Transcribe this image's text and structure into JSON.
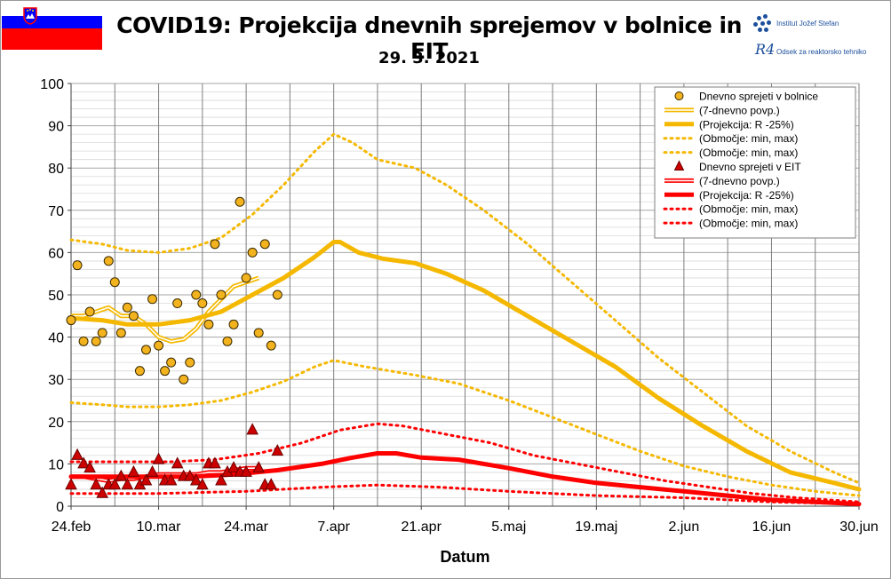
{
  "header": {
    "title": "COVID19: Projekcija dnevnih sprejemov v bolnice in EIT",
    "date": "29. 3. 2021",
    "flag_colors": [
      "#ffffff",
      "#0000ff",
      "#ff0000"
    ],
    "logo_institute": "Institut Jožef Stefan",
    "logo_dept_mark": "R4",
    "logo_dept": "Odsek za reaktorsko tehniko"
  },
  "chart_data": {
    "type": "line",
    "xlabel": "Datum",
    "ylabel": "",
    "ylim": [
      0,
      100
    ],
    "xlim": [
      "2021-02-24",
      "2021-06-30"
    ],
    "yticks": [
      0,
      10,
      20,
      30,
      40,
      50,
      60,
      70,
      80,
      90,
      100
    ],
    "xticks": [
      {
        "date": "2021-02-24",
        "label": "24.feb"
      },
      {
        "date": "2021-03-10",
        "label": "10.mar"
      },
      {
        "date": "2021-03-24",
        "label": "24.mar"
      },
      {
        "date": "2021-04-07",
        "label": "7.apr"
      },
      {
        "date": "2021-04-21",
        "label": "21.apr"
      },
      {
        "date": "2021-05-05",
        "label": "5.maj"
      },
      {
        "date": "2021-05-19",
        "label": "19.maj"
      },
      {
        "date": "2021-06-02",
        "label": "2.jun"
      },
      {
        "date": "2021-06-16",
        "label": "16.jun"
      },
      {
        "date": "2021-06-30",
        "label": "30.jun"
      }
    ],
    "grid": true,
    "legend_position": "top-right",
    "colors": {
      "hospital": "#f5b800",
      "hospital_dot": "#f2b31e",
      "eit": "#ff0000",
      "eit_marker": "#cc0000",
      "grid": "#bfbfbf",
      "week_grid": "#7f7f7f"
    },
    "series": [
      {
        "name": "Dnevno sprejeti v bolnice",
        "kind": "points",
        "marker": "circle",
        "points": [
          [
            "2021-02-24",
            44
          ],
          [
            "2021-02-25",
            57
          ],
          [
            "2021-02-26",
            39
          ],
          [
            "2021-02-27",
            46
          ],
          [
            "2021-02-28",
            39
          ],
          [
            "2021-03-01",
            41
          ],
          [
            "2021-03-02",
            58
          ],
          [
            "2021-03-03",
            53
          ],
          [
            "2021-03-04",
            41
          ],
          [
            "2021-03-05",
            47
          ],
          [
            "2021-03-06",
            45
          ],
          [
            "2021-03-07",
            32
          ],
          [
            "2021-03-08",
            37
          ],
          [
            "2021-03-09",
            49
          ],
          [
            "2021-03-10",
            38
          ],
          [
            "2021-03-11",
            32
          ],
          [
            "2021-03-12",
            34
          ],
          [
            "2021-03-13",
            48
          ],
          [
            "2021-03-14",
            30
          ],
          [
            "2021-03-15",
            34
          ],
          [
            "2021-03-16",
            50
          ],
          [
            "2021-03-17",
            48
          ],
          [
            "2021-03-18",
            43
          ],
          [
            "2021-03-19",
            62
          ],
          [
            "2021-03-20",
            50
          ],
          [
            "2021-03-21",
            39
          ],
          [
            "2021-03-22",
            43
          ],
          [
            "2021-03-23",
            72
          ],
          [
            "2021-03-24",
            54
          ],
          [
            "2021-03-25",
            60
          ],
          [
            "2021-03-26",
            41
          ],
          [
            "2021-03-27",
            62
          ],
          [
            "2021-03-28",
            38
          ],
          [
            "2021-03-29",
            50
          ]
        ]
      },
      {
        "name": "(7-dnevno povp.)",
        "kind": "double-line",
        "points": [
          [
            "2021-02-24",
            45
          ],
          [
            "2021-02-26",
            45
          ],
          [
            "2021-02-28",
            46
          ],
          [
            "2021-03-02",
            47
          ],
          [
            "2021-03-04",
            45
          ],
          [
            "2021-03-06",
            45
          ],
          [
            "2021-03-08",
            43
          ],
          [
            "2021-03-10",
            40
          ],
          [
            "2021-03-12",
            39
          ],
          [
            "2021-03-14",
            39.5
          ],
          [
            "2021-03-16",
            42
          ],
          [
            "2021-03-18",
            46
          ],
          [
            "2021-03-20",
            49
          ],
          [
            "2021-03-22",
            52
          ],
          [
            "2021-03-24",
            53
          ],
          [
            "2021-03-26",
            54
          ]
        ]
      },
      {
        "name": "(Projekcija: R -25%)",
        "kind": "line",
        "points": [
          [
            "2021-02-24",
            44.5
          ],
          [
            "2021-03-01",
            44
          ],
          [
            "2021-03-05",
            43
          ],
          [
            "2021-03-10",
            43
          ],
          [
            "2021-03-15",
            44
          ],
          [
            "2021-03-20",
            46
          ],
          [
            "2021-03-25",
            50
          ],
          [
            "2021-03-30",
            54
          ],
          [
            "2021-04-04",
            59
          ],
          [
            "2021-04-07",
            62.5
          ],
          [
            "2021-04-08",
            62.5
          ],
          [
            "2021-04-11",
            60
          ],
          [
            "2021-04-15",
            58.5
          ],
          [
            "2021-04-20",
            57.5
          ],
          [
            "2021-04-25",
            55
          ],
          [
            "2021-05-01",
            51
          ],
          [
            "2021-05-08",
            45
          ],
          [
            "2021-05-15",
            39
          ],
          [
            "2021-05-22",
            33
          ],
          [
            "2021-05-29",
            25.5
          ],
          [
            "2021-06-05",
            19
          ],
          [
            "2021-06-12",
            13
          ],
          [
            "2021-06-19",
            8
          ],
          [
            "2021-06-26",
            5.5
          ],
          [
            "2021-06-30",
            4
          ]
        ]
      },
      {
        "name": "(Območje: min, max)",
        "kind": "dotted-line",
        "part": "max",
        "points": [
          [
            "2021-02-24",
            63
          ],
          [
            "2021-03-01",
            62
          ],
          [
            "2021-03-05",
            60.5
          ],
          [
            "2021-03-10",
            60
          ],
          [
            "2021-03-15",
            61
          ],
          [
            "2021-03-20",
            63.5
          ],
          [
            "2021-03-25",
            69
          ],
          [
            "2021-03-30",
            76
          ],
          [
            "2021-04-04",
            84
          ],
          [
            "2021-04-07",
            88
          ],
          [
            "2021-04-10",
            86
          ],
          [
            "2021-04-14",
            82
          ],
          [
            "2021-04-20",
            80
          ],
          [
            "2021-04-25",
            76
          ],
          [
            "2021-05-01",
            70
          ],
          [
            "2021-05-08",
            62
          ],
          [
            "2021-05-15",
            53
          ],
          [
            "2021-05-22",
            44
          ],
          [
            "2021-05-29",
            35
          ],
          [
            "2021-06-05",
            27
          ],
          [
            "2021-06-12",
            19
          ],
          [
            "2021-06-19",
            13
          ],
          [
            "2021-06-26",
            8
          ],
          [
            "2021-06-30",
            5.5
          ]
        ]
      },
      {
        "name": "(Območje: min, max)",
        "kind": "dotted-line",
        "part": "min",
        "points": [
          [
            "2021-02-24",
            24.5
          ],
          [
            "2021-03-01",
            24
          ],
          [
            "2021-03-05",
            23.5
          ],
          [
            "2021-03-10",
            23.5
          ],
          [
            "2021-03-15",
            24
          ],
          [
            "2021-03-20",
            25
          ],
          [
            "2021-03-25",
            27
          ],
          [
            "2021-03-30",
            29.5
          ],
          [
            "2021-04-04",
            33
          ],
          [
            "2021-04-07",
            34.5
          ],
          [
            "2021-04-12",
            33
          ],
          [
            "2021-04-20",
            31
          ],
          [
            "2021-04-27",
            29
          ],
          [
            "2021-05-05",
            25
          ],
          [
            "2021-05-12",
            21
          ],
          [
            "2021-05-19",
            17
          ],
          [
            "2021-05-26",
            13
          ],
          [
            "2021-06-02",
            9.5
          ],
          [
            "2021-06-09",
            7
          ],
          [
            "2021-06-16",
            5
          ],
          [
            "2021-06-23",
            3.5
          ],
          [
            "2021-06-30",
            2.5
          ]
        ]
      },
      {
        "name": "Dnevno sprejeti v EIT",
        "kind": "points",
        "marker": "triangle",
        "points": [
          [
            "2021-02-24",
            5
          ],
          [
            "2021-02-25",
            12
          ],
          [
            "2021-02-26",
            10
          ],
          [
            "2021-02-27",
            9
          ],
          [
            "2021-02-28",
            5
          ],
          [
            "2021-03-01",
            3
          ],
          [
            "2021-03-02",
            5
          ],
          [
            "2021-03-03",
            5
          ],
          [
            "2021-03-04",
            7
          ],
          [
            "2021-03-05",
            5
          ],
          [
            "2021-03-06",
            8
          ],
          [
            "2021-03-07",
            5
          ],
          [
            "2021-03-08",
            6
          ],
          [
            "2021-03-09",
            8
          ],
          [
            "2021-03-10",
            11
          ],
          [
            "2021-03-11",
            6
          ],
          [
            "2021-03-12",
            6
          ],
          [
            "2021-03-13",
            10
          ],
          [
            "2021-03-14",
            7
          ],
          [
            "2021-03-15",
            7
          ],
          [
            "2021-03-16",
            6
          ],
          [
            "2021-03-17",
            5
          ],
          [
            "2021-03-18",
            10
          ],
          [
            "2021-03-19",
            10
          ],
          [
            "2021-03-20",
            6
          ],
          [
            "2021-03-21",
            8
          ],
          [
            "2021-03-22",
            9
          ],
          [
            "2021-03-23",
            8
          ],
          [
            "2021-03-24",
            8
          ],
          [
            "2021-03-25",
            18
          ],
          [
            "2021-03-26",
            9
          ],
          [
            "2021-03-27",
            5
          ],
          [
            "2021-03-28",
            5
          ],
          [
            "2021-03-29",
            13
          ]
        ]
      },
      {
        "name": "(7-dnevno povp.)",
        "kind": "double-line",
        "points": [
          [
            "2021-02-24",
            7
          ],
          [
            "2021-02-26",
            7
          ],
          [
            "2021-02-28",
            6.5
          ],
          [
            "2021-03-02",
            6
          ],
          [
            "2021-03-04",
            6.5
          ],
          [
            "2021-03-06",
            6.5
          ],
          [
            "2021-03-08",
            7
          ],
          [
            "2021-03-10",
            7.5
          ],
          [
            "2021-03-12",
            7.5
          ],
          [
            "2021-03-14",
            7.5
          ],
          [
            "2021-03-16",
            7.5
          ],
          [
            "2021-03-18",
            8
          ],
          [
            "2021-03-20",
            8
          ],
          [
            "2021-03-22",
            8.5
          ],
          [
            "2021-03-24",
            9
          ],
          [
            "2021-03-26",
            9
          ]
        ]
      },
      {
        "name": "(Projekcija: R -25%)",
        "kind": "line",
        "points": [
          [
            "2021-02-24",
            7
          ],
          [
            "2021-03-05",
            7
          ],
          [
            "2021-03-15",
            7
          ],
          [
            "2021-03-22",
            7.5
          ],
          [
            "2021-03-29",
            8.5
          ],
          [
            "2021-04-05",
            10
          ],
          [
            "2021-04-10",
            11.5
          ],
          [
            "2021-04-14",
            12.5
          ],
          [
            "2021-04-17",
            12.5
          ],
          [
            "2021-04-21",
            11.5
          ],
          [
            "2021-04-27",
            11
          ],
          [
            "2021-05-05",
            9
          ],
          [
            "2021-05-12",
            7
          ],
          [
            "2021-05-19",
            5.5
          ],
          [
            "2021-05-26",
            4.5
          ],
          [
            "2021-06-02",
            3.5
          ],
          [
            "2021-06-09",
            2.5
          ],
          [
            "2021-06-16",
            1.5
          ],
          [
            "2021-06-23",
            1
          ],
          [
            "2021-06-30",
            0.5
          ]
        ]
      },
      {
        "name": "(Območje: min, max)",
        "kind": "dotted-line",
        "part": "max",
        "points": [
          [
            "2021-02-24",
            10.5
          ],
          [
            "2021-03-05",
            10.5
          ],
          [
            "2021-03-12",
            10.5
          ],
          [
            "2021-03-19",
            11
          ],
          [
            "2021-03-26",
            12.5
          ],
          [
            "2021-04-02",
            15
          ],
          [
            "2021-04-08",
            18
          ],
          [
            "2021-04-14",
            19.5
          ],
          [
            "2021-04-18",
            19
          ],
          [
            "2021-04-25",
            17
          ],
          [
            "2021-05-02",
            15
          ],
          [
            "2021-05-09",
            12
          ],
          [
            "2021-05-16",
            10
          ],
          [
            "2021-05-23",
            8
          ],
          [
            "2021-05-30",
            6
          ],
          [
            "2021-06-06",
            4.5
          ],
          [
            "2021-06-13",
            3
          ],
          [
            "2021-06-20",
            2
          ],
          [
            "2021-06-30",
            1
          ]
        ]
      },
      {
        "name": "(Območje: min, max)",
        "kind": "dotted-line",
        "part": "min",
        "points": [
          [
            "2021-02-24",
            3
          ],
          [
            "2021-03-10",
            3
          ],
          [
            "2021-03-24",
            3.5
          ],
          [
            "2021-04-05",
            4.5
          ],
          [
            "2021-04-14",
            5
          ],
          [
            "2021-04-24",
            4.5
          ],
          [
            "2021-05-05",
            3.5
          ],
          [
            "2021-05-19",
            2.5
          ],
          [
            "2021-06-02",
            2
          ],
          [
            "2021-06-16",
            1
          ],
          [
            "2021-06-30",
            0.5
          ]
        ]
      }
    ]
  }
}
